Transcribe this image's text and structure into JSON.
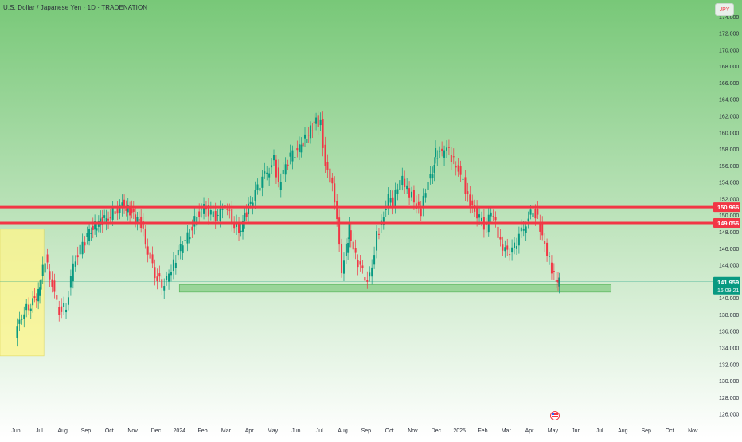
{
  "header": {
    "title": "U.S. Dollar / Japanese Yen · 1D · TRADENATION",
    "currency": "JPY"
  },
  "colors": {
    "bg_top": "#78c878",
    "bg_bottom": "#ffffff",
    "up": "#089981",
    "down": "#f23645",
    "resistance_line": "#f23645",
    "support_zone": "#8fd18f",
    "current_price_label": "#089981",
    "highlight_box": "#fff58a"
  },
  "price_axis": {
    "min": 125,
    "max": 176,
    "ticks": [
      "126.000",
      "128.000",
      "130.000",
      "132.000",
      "134.000",
      "136.000",
      "138.000",
      "140.000",
      "142.000",
      "144.000",
      "146.000",
      "148.000",
      "150.000",
      "152.000",
      "154.000",
      "156.000",
      "158.000",
      "160.000",
      "162.000",
      "164.000",
      "166.000",
      "168.000",
      "170.000",
      "172.000",
      "174.000"
    ]
  },
  "time_axis": {
    "labels": [
      "Jun",
      "Jul",
      "Aug",
      "Sep",
      "Oct",
      "Nov",
      "Dec",
      "2024",
      "Feb",
      "Mar",
      "Apr",
      "May",
      "Jun",
      "Jul",
      "Aug",
      "Sep",
      "Oct",
      "Nov",
      "Dec",
      "2025",
      "Feb",
      "Mar",
      "Apr",
      "May",
      "Jun",
      "Jul",
      "Aug",
      "Sep",
      "Oct",
      "Nov"
    ],
    "start": 0,
    "end": 29.5
  },
  "price_labels": [
    {
      "text": "150.966",
      "value": 150.966,
      "color": "#f23645"
    },
    {
      "text": "149.056",
      "value": 149.056,
      "color": "#f23645"
    }
  ],
  "current_price": {
    "price": "141.959",
    "countdown": "16:09:21",
    "value": 141.959
  },
  "chart_data": {
    "type": "line",
    "symbol": "USDJPY",
    "interval": "1D",
    "x_unit": "months from June 2023",
    "x": [
      0,
      0.3,
      0.6,
      1.0,
      1.1,
      1.3,
      1.6,
      1.9,
      2.2,
      2.5,
      2.8,
      3.1,
      3.5,
      4.0,
      4.3,
      4.6,
      5.0,
      5.4,
      5.7,
      6.0,
      6.3,
      6.5,
      6.7,
      7.0,
      7.2,
      7.5,
      7.8,
      8.1,
      8.4,
      8.7,
      9.0,
      9.3,
      9.6,
      10.0,
      10.3,
      10.6,
      10.9,
      11.1,
      11.3,
      11.5,
      11.8,
      12.1,
      12.5,
      12.9,
      13.1,
      13.3,
      13.5,
      13.7,
      14.0,
      14.2,
      14.3,
      14.5,
      14.8,
      15.1,
      15.3,
      15.5,
      15.7,
      16.0,
      16.2,
      16.4,
      16.6,
      16.8,
      17.0,
      17.2,
      17.4,
      17.6,
      17.9,
      18.0,
      18.3,
      18.5,
      18.7,
      19.0,
      19.2,
      19.4,
      19.6,
      19.9,
      20.2,
      20.4,
      20.6,
      20.8,
      21.0,
      21.3,
      21.6,
      21.9,
      22.2,
      22.4,
      22.6,
      22.8,
      23.0,
      23.2,
      23.3
    ],
    "y": [
      135.5,
      138.0,
      139.0,
      140.5,
      142.5,
      144.8,
      141.5,
      138.5,
      139.0,
      144.0,
      145.8,
      147.5,
      149.0,
      149.8,
      150.5,
      151.3,
      150.2,
      149.0,
      145.5,
      143.0,
      141.5,
      142.5,
      143.5,
      145.5,
      146.5,
      148.0,
      150.0,
      151.0,
      150.0,
      149.8,
      151.3,
      149.5,
      148.0,
      151.0,
      152.5,
      154.5,
      155.5,
      156.8,
      153.5,
      155.5,
      157.0,
      157.8,
      159.5,
      161.5,
      161.0,
      156.0,
      154.5,
      152.0,
      143.5,
      146.0,
      148.5,
      146.0,
      143.5,
      142.0,
      143.5,
      147.5,
      149.0,
      152.0,
      151.5,
      153.5,
      154.5,
      153.0,
      152.5,
      151.0,
      150.5,
      153.0,
      155.5,
      157.5,
      157.5,
      158.5,
      157.0,
      155.5,
      154.0,
      152.0,
      151.0,
      149.5,
      148.5,
      150.5,
      149.0,
      146.5,
      146.0,
      145.5,
      147.5,
      149.0,
      150.8,
      149.5,
      147.5,
      145.5,
      143.5,
      142.0,
      141.959
    ],
    "resistance_levels": [
      150.966,
      149.056
    ],
    "support_zone": {
      "from": 140.7,
      "to": 141.6,
      "start_x": 7.0,
      "end_x": 25.5
    },
    "highlight_zone": {
      "from": 133.0,
      "to": 148.3,
      "start_x": -1.6,
      "end_x": 1.2
    },
    "last_price": 141.959
  }
}
